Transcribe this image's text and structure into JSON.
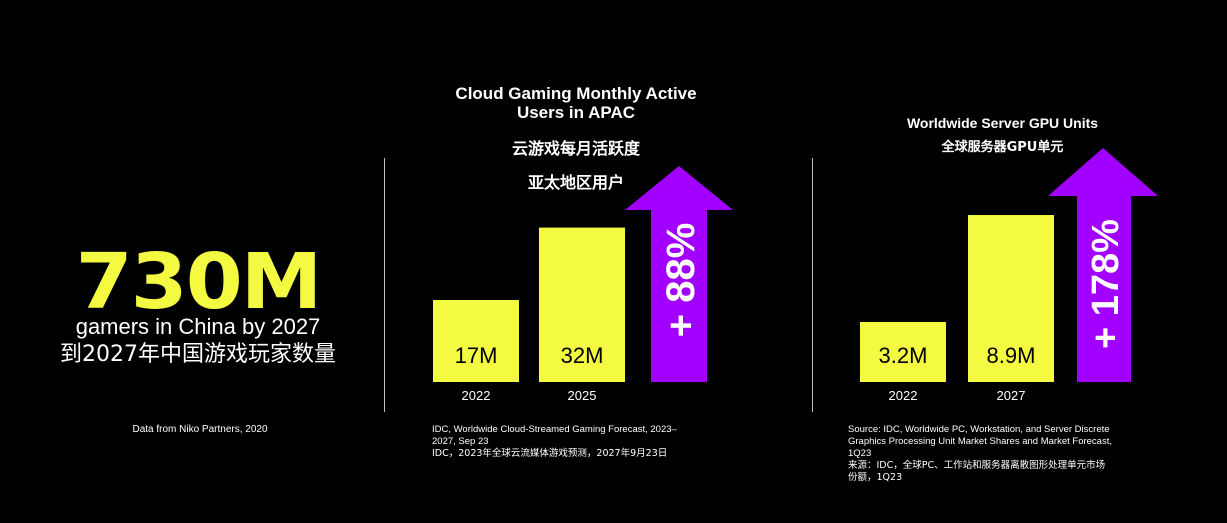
{
  "stat": {
    "value": "730M",
    "label_en": "gamers in China by 2027",
    "label_zh": "到2027年中国游戏玩家数量",
    "source": "Data from Niko Partners, 2020"
  },
  "colors": {
    "background": "#000000",
    "bar": "#f4f942",
    "arrow": "#a200ff",
    "text": "#ffffff",
    "divider": "#bfbfbf"
  },
  "chart_data": [
    {
      "type": "bar",
      "title": "Cloud Gaming Monthly Active Users in APAC",
      "title_zh_line1": "云游戏每月活跃度",
      "title_zh_line2": "亚太地区用户",
      "categories": [
        "2022",
        "2025"
      ],
      "values": [
        17,
        32
      ],
      "value_labels": [
        "17M",
        "32M"
      ],
      "unit": "M",
      "ylim": [
        0,
        40
      ],
      "growth_label": "+ 88%",
      "source_lines": [
        "IDC, Worldwide Cloud-Streamed Gaming Forecast, 2023–",
        "2027, Sep 23",
        "IDC，2023年全球云流媒体游戏预测，2027年9月23日"
      ]
    },
    {
      "type": "bar",
      "title": "Worldwide Server GPU Units",
      "title_zh": "全球服务器GPU单元",
      "categories": [
        "2022",
        "2027"
      ],
      "values": [
        3.2,
        8.9
      ],
      "value_labels": [
        "3.2M",
        "8.9M"
      ],
      "unit": "M",
      "ylim": [
        0,
        10.5
      ],
      "growth_label": "+ 178%",
      "source_lines": [
        "Source: IDC, Worldwide PC, Workstation, and Server Discrete",
        "Graphics Processing Unit Market Shares and Market Forecast,",
        "1Q23",
        "来源：IDC，全球PC、工作站和服务器离散图形处理单元市场",
        "份额，1Q23"
      ]
    }
  ]
}
